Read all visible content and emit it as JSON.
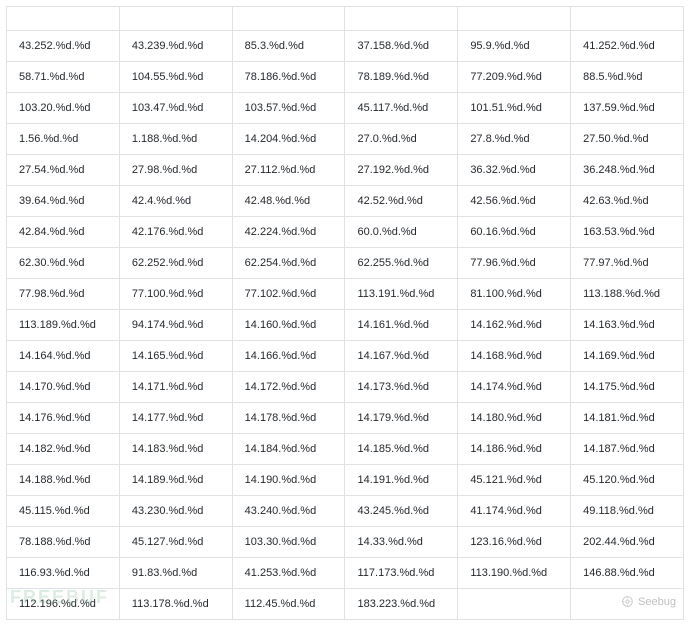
{
  "table": {
    "columns": [
      "",
      "",
      "",
      "",
      "",
      ""
    ],
    "rows": [
      [
        "43.252.%d.%d",
        "43.239.%d.%d",
        "85.3.%d.%d",
        "37.158.%d.%d",
        "95.9.%d.%d",
        "41.252.%d.%d"
      ],
      [
        "58.71.%d.%d",
        "104.55.%d.%d",
        "78.186.%d.%d",
        "78.189.%d.%d",
        "77.209.%d.%d",
        "88.5.%d.%d"
      ],
      [
        "103.20.%d.%d",
        "103.47.%d.%d",
        "103.57.%d.%d",
        "45.117.%d.%d",
        "101.51.%d.%d",
        "137.59.%d.%d"
      ],
      [
        "1.56.%d.%d",
        "1.188.%d.%d",
        "14.204.%d.%d",
        "27.0.%d.%d",
        "27.8.%d.%d",
        "27.50.%d.%d"
      ],
      [
        "27.54.%d.%d",
        "27.98.%d.%d",
        "27.112.%d.%d",
        "27.192.%d.%d",
        "36.32.%d.%d",
        "36.248.%d.%d"
      ],
      [
        "39.64.%d.%d",
        "42.4.%d.%d",
        "42.48.%d.%d",
        "42.52.%d.%d",
        "42.56.%d.%d",
        "42.63.%d.%d"
      ],
      [
        "42.84.%d.%d",
        "42.176.%d.%d",
        "42.224.%d.%d",
        "60.0.%d.%d",
        "60.16.%d.%d",
        "163.53.%d.%d"
      ],
      [
        "62.30.%d.%d",
        "62.252.%d.%d",
        "62.254.%d.%d",
        "62.255.%d.%d",
        "77.96.%d.%d",
        "77.97.%d.%d"
      ],
      [
        "77.98.%d.%d",
        "77.100.%d.%d",
        "77.102.%d.%d",
        "113.191.%d.%d",
        "81.100.%d.%d",
        "113.188.%d.%d"
      ],
      [
        "113.189.%d.%d",
        "94.174.%d.%d",
        "14.160.%d.%d",
        "14.161.%d.%d",
        "14.162.%d.%d",
        "14.163.%d.%d"
      ],
      [
        "14.164.%d.%d",
        "14.165.%d.%d",
        "14.166.%d.%d",
        "14.167.%d.%d",
        "14.168.%d.%d",
        "14.169.%d.%d"
      ],
      [
        "14.170.%d.%d",
        "14.171.%d.%d",
        "14.172.%d.%d",
        "14.173.%d.%d",
        "14.174.%d.%d",
        "14.175.%d.%d"
      ],
      [
        "14.176.%d.%d",
        "14.177.%d.%d",
        "14.178.%d.%d",
        "14.179.%d.%d",
        "14.180.%d.%d",
        "14.181.%d.%d"
      ],
      [
        "14.182.%d.%d",
        "14.183.%d.%d",
        "14.184.%d.%d",
        "14.185.%d.%d",
        "14.186.%d.%d",
        "14.187.%d.%d"
      ],
      [
        "14.188.%d.%d",
        "14.189.%d.%d",
        "14.190.%d.%d",
        "14.191.%d.%d",
        "45.121.%d.%d",
        "45.120.%d.%d"
      ],
      [
        "45.115.%d.%d",
        "43.230.%d.%d",
        "43.240.%d.%d",
        "43.245.%d.%d",
        "41.174.%d.%d",
        "49.118.%d.%d"
      ],
      [
        "78.188.%d.%d",
        "45.127.%d.%d",
        "103.30.%d.%d",
        "14.33.%d.%d",
        "123.16.%d.%d",
        "202.44.%d.%d"
      ],
      [
        "116.93.%d.%d",
        "91.83.%d.%d",
        "41.253.%d.%d",
        "117.173.%d.%d",
        "113.190.%d.%d",
        "146.88.%d.%d"
      ],
      [
        "112.196.%d.%d",
        "113.178.%d.%d",
        "112.45.%d.%d",
        "183.223.%d.%d",
        "",
        ""
      ]
    ],
    "border_color": "#dfe2e5",
    "text_color": "#24292e",
    "background_color": "#ffffff",
    "font_size": 11,
    "cell_padding": "7px 12px"
  },
  "watermark": {
    "left_text": "FREEBUF",
    "right_text": "Seebug"
  }
}
